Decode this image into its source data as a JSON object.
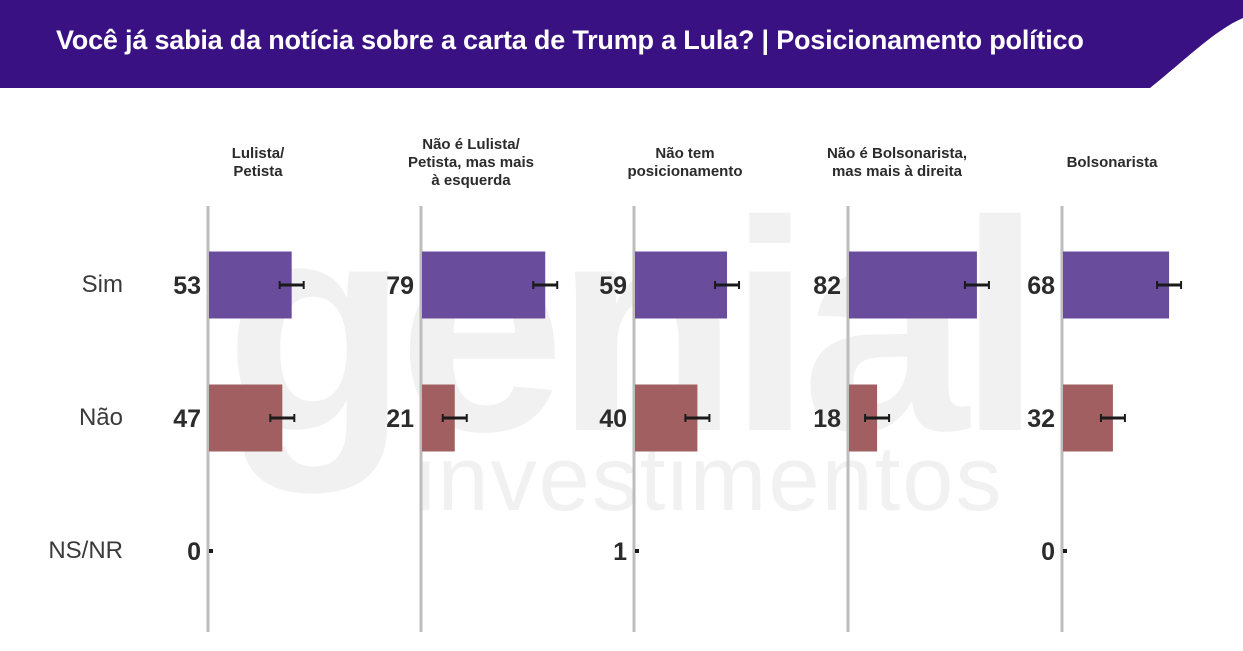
{
  "header": {
    "title": "Você já sabia da notícia sobre a carta de Trump a Lula? | Posicionamento político",
    "background_color": "#3a1183"
  },
  "watermark": {
    "line1": "genial",
    "line2": "investimentos",
    "color": "#f1f1f1"
  },
  "chart_data": {
    "type": "bar",
    "orientation": "horizontal",
    "title": "Você já sabia da notícia sobre a carta de Trump a Lula? | Posicionamento político",
    "categories": [
      "Sim",
      "Não",
      "NS/NR"
    ],
    "panels": [
      {
        "name": "Lulista/\nPetista",
        "values": [
          53,
          47,
          0
        ]
      },
      {
        "name": "Não é Lulista/\nPetista, mas mais\nà esquerda",
        "values": [
          79,
          21,
          null
        ]
      },
      {
        "name": "Não tem\nposicionamento",
        "values": [
          59,
          40,
          1
        ]
      },
      {
        "name": "Não é Bolsonarista,\nmas mais à direita",
        "values": [
          82,
          18,
          null
        ]
      },
      {
        "name": "Bolsonarista",
        "values": [
          68,
          32,
          0
        ]
      }
    ],
    "colors": {
      "Sim": "#6a4c9c",
      "Não": "#a15f61",
      "NS/NR": "#3a3a3a"
    },
    "error_bar_color": "#1a1a1a",
    "axis_color": "#bdbdbd",
    "xlim": [
      0,
      100
    ],
    "grid": false,
    "legend": "none"
  }
}
